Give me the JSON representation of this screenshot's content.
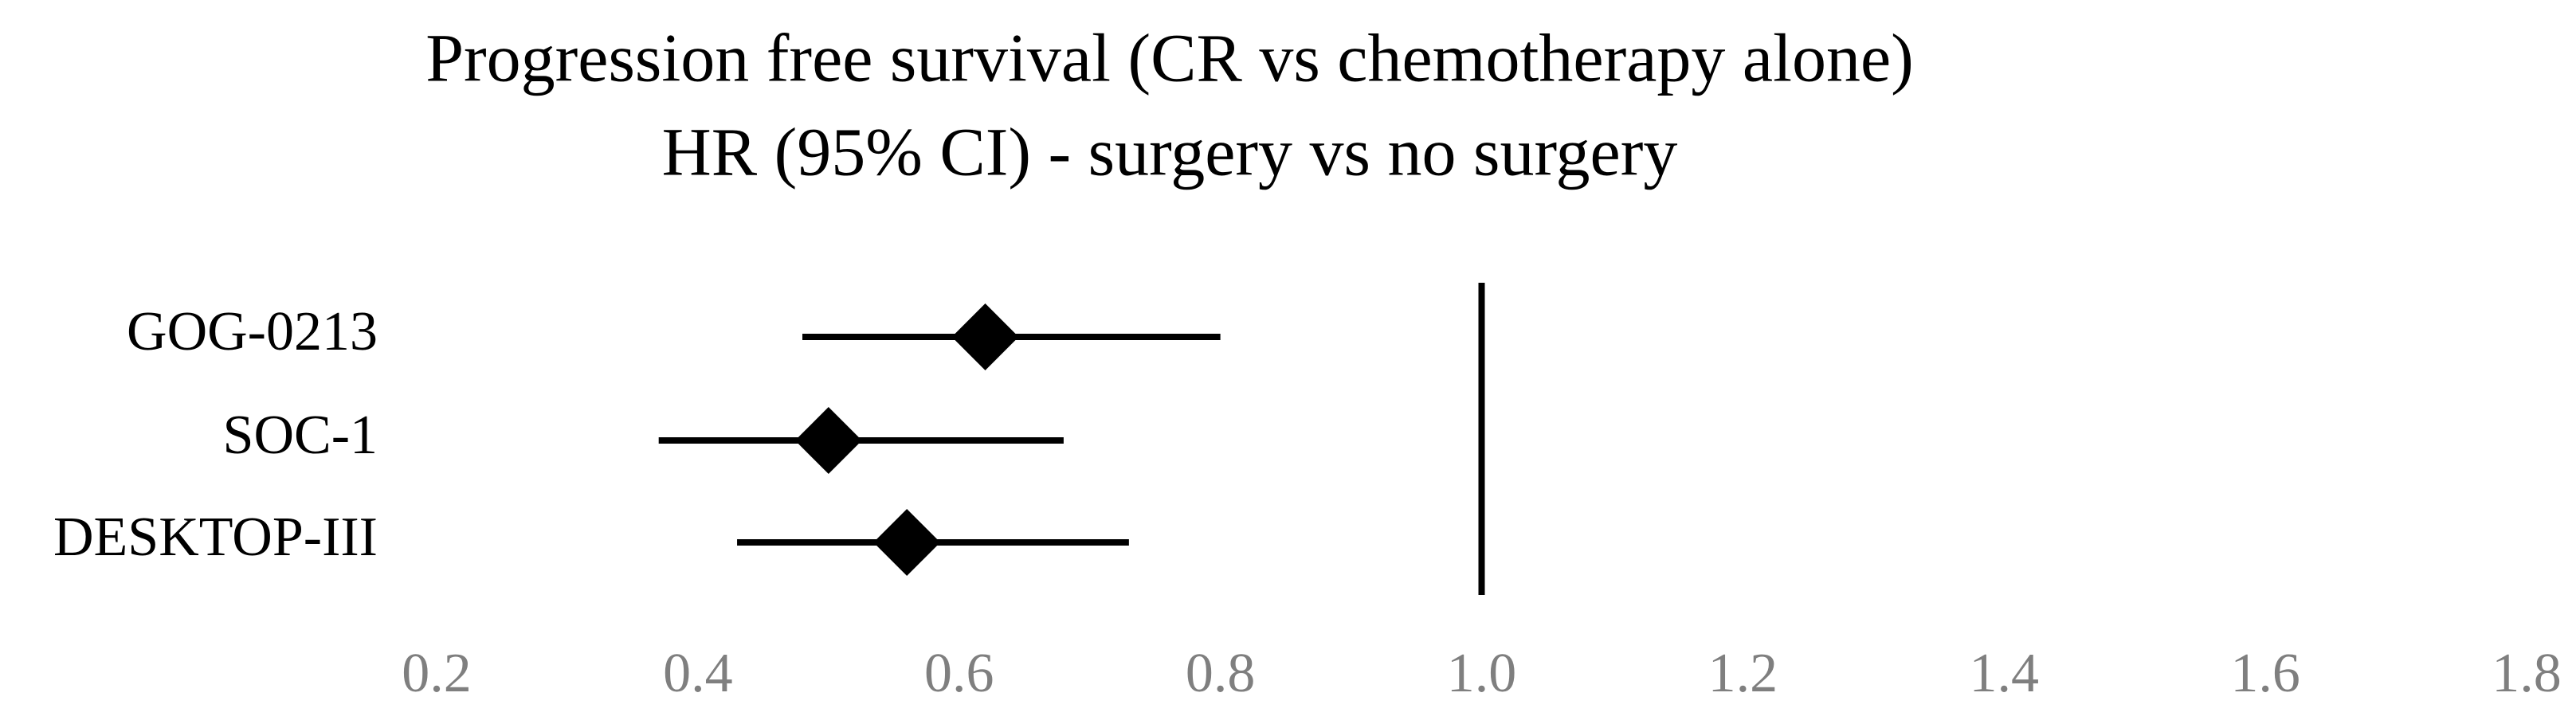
{
  "chart_data": {
    "type": "forest",
    "title": "Progression free survival (CR vs chemotherapy alone)",
    "subtitle": "HR (95% CI) - surgery vs no surgery",
    "categories": [
      "GOG-0213",
      "SOC-1",
      "DESKTOP-III"
    ],
    "values": [
      0.62,
      0.5,
      0.56
    ],
    "lower": [
      0.48,
      0.37,
      0.43
    ],
    "upper": [
      0.8,
      0.68,
      0.73
    ],
    "color": "#000000",
    "reference_line": 1,
    "xlim": [
      0.2,
      1.8
    ],
    "xticks": [
      0.2,
      0.4,
      0.6,
      0.8,
      {
        "value": 1,
        "label": "1.0"
      },
      1.2,
      1.4,
      1.6,
      1.8
    ]
  }
}
